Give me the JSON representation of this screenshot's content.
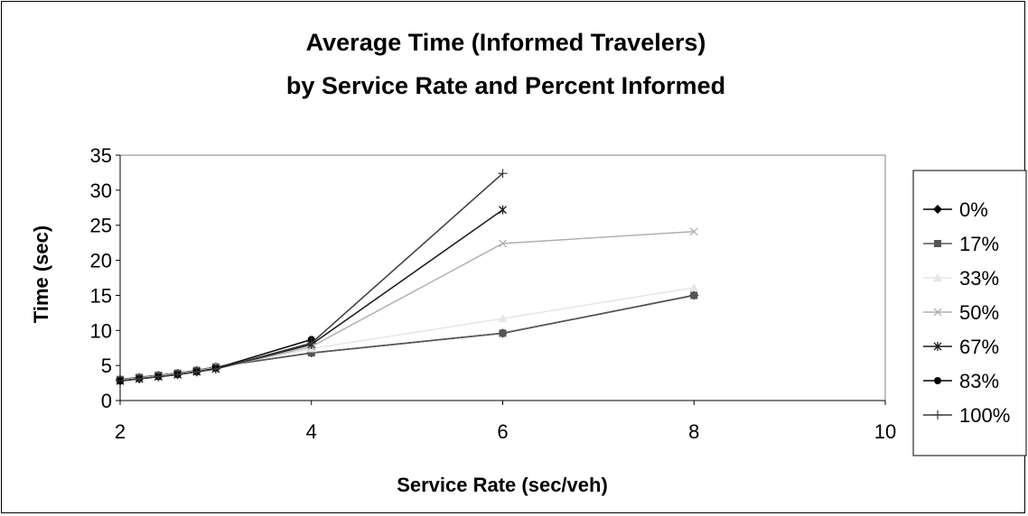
{
  "chart_data": {
    "type": "line",
    "title_line1": "Average Time (Informed Travelers)",
    "title_line2": "by Service Rate and Percent Informed",
    "xlabel": "Service Rate (sec/veh)",
    "ylabel": "Time (sec)",
    "xlim": [
      2,
      10
    ],
    "ylim": [
      0,
      35
    ],
    "xticks": [
      2,
      4,
      6,
      8,
      10
    ],
    "yticks": [
      0,
      5,
      10,
      15,
      20,
      25,
      30,
      35
    ],
    "grid": false,
    "legend_position": "right",
    "series": [
      {
        "name": "0%",
        "color": "#000000",
        "marker": "diamond",
        "x": [
          2,
          2.2,
          2.4,
          2.6,
          2.8,
          3,
          4,
          6,
          8
        ],
        "y": [
          3.0,
          3.3,
          3.6,
          3.9,
          4.3,
          4.8,
          6.8,
          9.6,
          15.0
        ]
      },
      {
        "name": "17%",
        "color": "#555555",
        "marker": "square",
        "x": [
          2,
          2.2,
          2.4,
          2.6,
          2.8,
          3,
          4,
          6,
          8
        ],
        "y": [
          3.0,
          3.3,
          3.6,
          3.9,
          4.3,
          4.8,
          6.8,
          9.6,
          15.0
        ]
      },
      {
        "name": "33%",
        "color": "#e6e6e6",
        "marker": "triangle",
        "x": [
          2,
          2.2,
          2.4,
          2.6,
          2.8,
          3,
          4,
          6,
          8
        ],
        "y": [
          2.9,
          3.2,
          3.5,
          3.8,
          4.2,
          4.7,
          7.4,
          11.7,
          16.1
        ]
      },
      {
        "name": "50%",
        "color": "#b0b0b0",
        "marker": "x",
        "x": [
          2,
          2.2,
          2.4,
          2.6,
          2.8,
          3,
          4,
          6,
          8
        ],
        "y": [
          2.8,
          3.1,
          3.4,
          3.7,
          4.1,
          4.5,
          7.7,
          22.4,
          24.1
        ]
      },
      {
        "name": "67%",
        "color": "#1a1a1a",
        "marker": "star",
        "x": [
          2,
          2.2,
          2.4,
          2.6,
          2.8,
          3,
          4,
          6
        ],
        "y": [
          2.8,
          3.1,
          3.4,
          3.7,
          4.1,
          4.5,
          8.0,
          27.2
        ]
      },
      {
        "name": "83%",
        "color": "#000000",
        "marker": "circle",
        "x": [
          2,
          2.2,
          2.4,
          2.6,
          2.8,
          3,
          4
        ],
        "y": [
          2.8,
          3.1,
          3.4,
          3.7,
          4.1,
          4.6,
          8.7
        ]
      },
      {
        "name": "100%",
        "color": "#3a3a3a",
        "marker": "plus",
        "x": [
          2,
          2.2,
          2.4,
          2.6,
          2.8,
          3,
          4,
          6
        ],
        "y": [
          2.8,
          3.1,
          3.4,
          3.7,
          4.1,
          4.5,
          8.2,
          32.4
        ]
      }
    ]
  }
}
